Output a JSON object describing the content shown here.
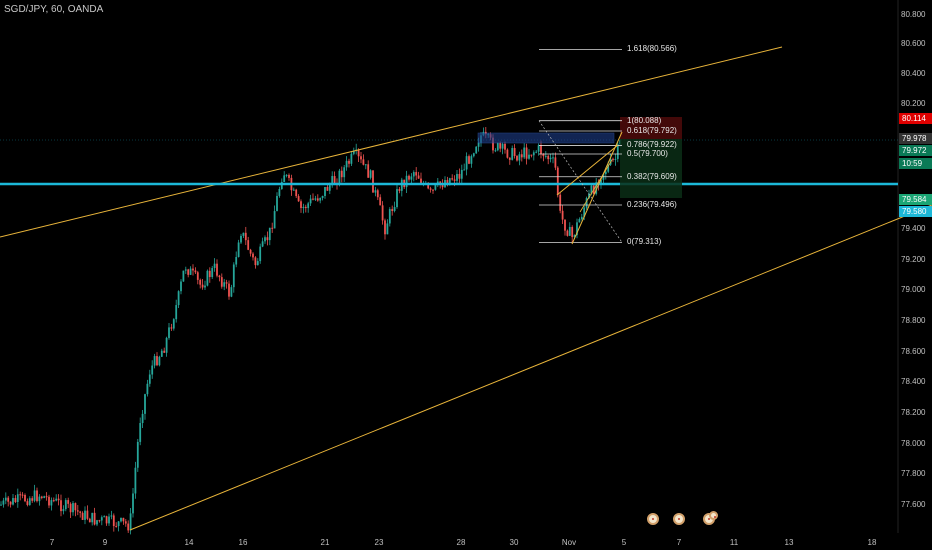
{
  "header": {
    "symbol": "SGD/JPY, 60, OANDA"
  },
  "chart_data": {
    "type": "candlestick",
    "symbol": "SGD/JPY",
    "interval": "60",
    "source": "OANDA",
    "x_tick_labels": [
      "7",
      "9",
      "14",
      "16",
      "21",
      "23",
      "28",
      "30",
      "Nov",
      "5",
      "7",
      "11",
      "13",
      "18"
    ],
    "y_tick_labels": [
      "77.600",
      "77.800",
      "78.000",
      "78.200",
      "78.400",
      "78.600",
      "78.800",
      "79.000",
      "79.200",
      "79.400",
      "80.200",
      "80.400",
      "80.600",
      "80.800"
    ],
    "price_badges": [
      {
        "value": "80.114",
        "color": "#e00000"
      },
      {
        "value": "79.978",
        "color": "#333333"
      },
      {
        "value": "79.972",
        "color": "#0a7a56"
      },
      {
        "value": "10:59",
        "color": "#0a7a56"
      },
      {
        "value": "79.584",
        "color": "#1aa574"
      },
      {
        "value": "79.580",
        "color": "#1cb8d8"
      }
    ],
    "fibonacci": [
      {
        "label": "1.618(80.566)",
        "price": 80.566
      },
      {
        "label": "1(80.088)",
        "price": 80.088
      },
      {
        "label": "0.786(79.922)",
        "price": 79.922
      },
      {
        "label": "0.618(79.792)",
        "price": 79.792
      },
      {
        "label": "0.5(79.700)",
        "price": 79.7
      },
      {
        "label": "0.382(79.609)",
        "price": 79.609
      },
      {
        "label": "0.236(79.496)",
        "price": 79.496
      },
      {
        "label": "0(79.313)",
        "price": 79.313
      }
    ],
    "horizontal_line_price": 79.58,
    "colors": {
      "background": "#000000",
      "up": "#26a69a",
      "down": "#ef5350",
      "trendline": "#e8b43a",
      "level": "#1cb8d8",
      "text": "#c0c0c0"
    }
  }
}
